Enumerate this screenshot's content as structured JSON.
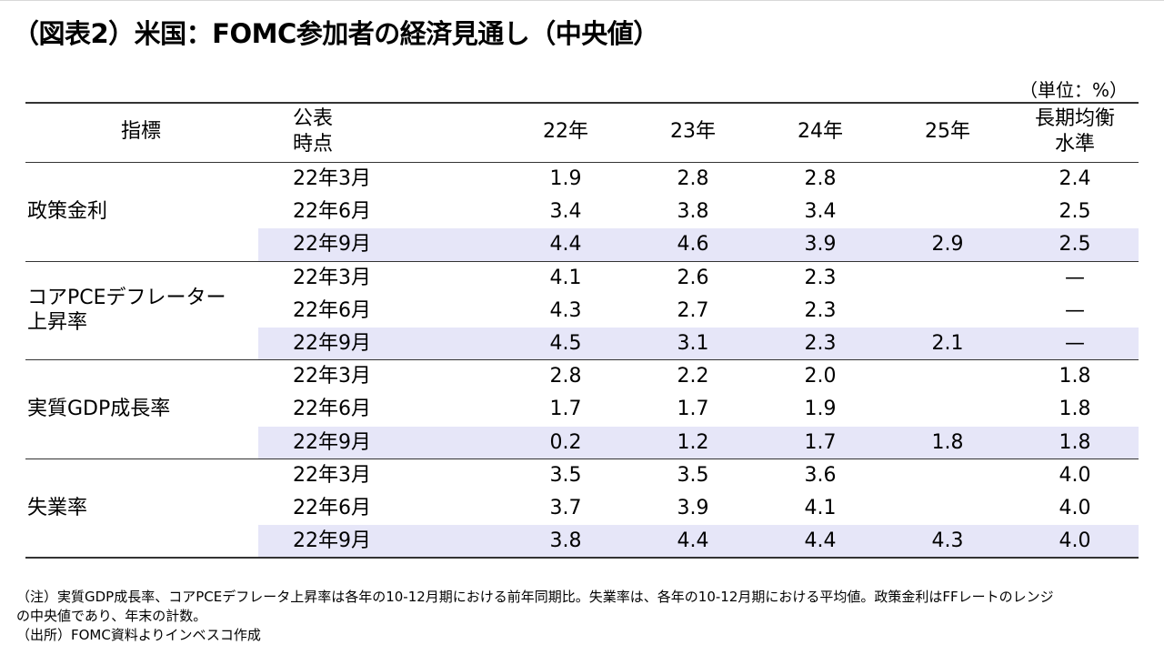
{
  "title": "（図表2）米国：FOMC参加者の経済見通し（中央値）",
  "unit_label": "（単位：%）",
  "table": {
    "headers": {
      "indicator": "指標",
      "published_line1": "公表",
      "published_line2": "時点",
      "y22": "22年",
      "y23": "23年",
      "y24": "24年",
      "y25": "25年",
      "longrun_line1": "長期均衡",
      "longrun_line2": "水準"
    },
    "groups": [
      {
        "label_lines": [
          "政策金利"
        ],
        "rows": [
          {
            "date": "22年3月",
            "y22": "1.9",
            "y23": "2.8",
            "y24": "2.8",
            "y25": "",
            "longrun": "2.4"
          },
          {
            "date": "22年6月",
            "y22": "3.4",
            "y23": "3.8",
            "y24": "3.4",
            "y25": "",
            "longrun": "2.5"
          },
          {
            "date": "22年9月",
            "y22": "4.4",
            "y23": "4.6",
            "y24": "3.9",
            "y25": "2.9",
            "longrun": "2.5"
          }
        ]
      },
      {
        "label_lines": [
          "コアPCEデフレーター",
          "上昇率"
        ],
        "rows": [
          {
            "date": "22年3月",
            "y22": "4.1",
            "y23": "2.6",
            "y24": "2.3",
            "y25": "",
            "longrun": "—"
          },
          {
            "date": "22年6月",
            "y22": "4.3",
            "y23": "2.7",
            "y24": "2.3",
            "y25": "",
            "longrun": "—"
          },
          {
            "date": "22年9月",
            "y22": "4.5",
            "y23": "3.1",
            "y24": "2.3",
            "y25": "2.1",
            "longrun": "—"
          }
        ]
      },
      {
        "label_lines": [
          "実質GDP成長率"
        ],
        "rows": [
          {
            "date": "22年3月",
            "y22": "2.8",
            "y23": "2.2",
            "y24": "2.0",
            "y25": "",
            "longrun": "1.8"
          },
          {
            "date": "22年6月",
            "y22": "1.7",
            "y23": "1.7",
            "y24": "1.9",
            "y25": "",
            "longrun": "1.8"
          },
          {
            "date": "22年9月",
            "y22": "0.2",
            "y23": "1.2",
            "y24": "1.7",
            "y25": "1.8",
            "longrun": "1.8"
          }
        ]
      },
      {
        "label_lines": [
          "失業率"
        ],
        "rows": [
          {
            "date": "22年3月",
            "y22": "3.5",
            "y23": "3.5",
            "y24": "3.6",
            "y25": "",
            "longrun": "4.0"
          },
          {
            "date": "22年6月",
            "y22": "3.7",
            "y23": "3.9",
            "y24": "4.1",
            "y25": "",
            "longrun": "4.0"
          },
          {
            "date": "22年9月",
            "y22": "3.8",
            "y23": "4.4",
            "y24": "4.4",
            "y25": "4.3",
            "longrun": "4.0"
          }
        ]
      }
    ]
  },
  "notes": {
    "line1": "（注）実質GDP成長率、コアPCEデフレータ上昇率は各年の10-12月期における前年同期比。失業率は、各年の10-12月期における平均値。政策金利はFFレートのレンジ",
    "line2": "の中央値であり、年末の計数。",
    "line3": "（出所）FOMC資料よりインベスコ作成"
  },
  "colors": {
    "highlight_row": "#e6e6f8",
    "rule": "#333333",
    "text": "#000000"
  }
}
